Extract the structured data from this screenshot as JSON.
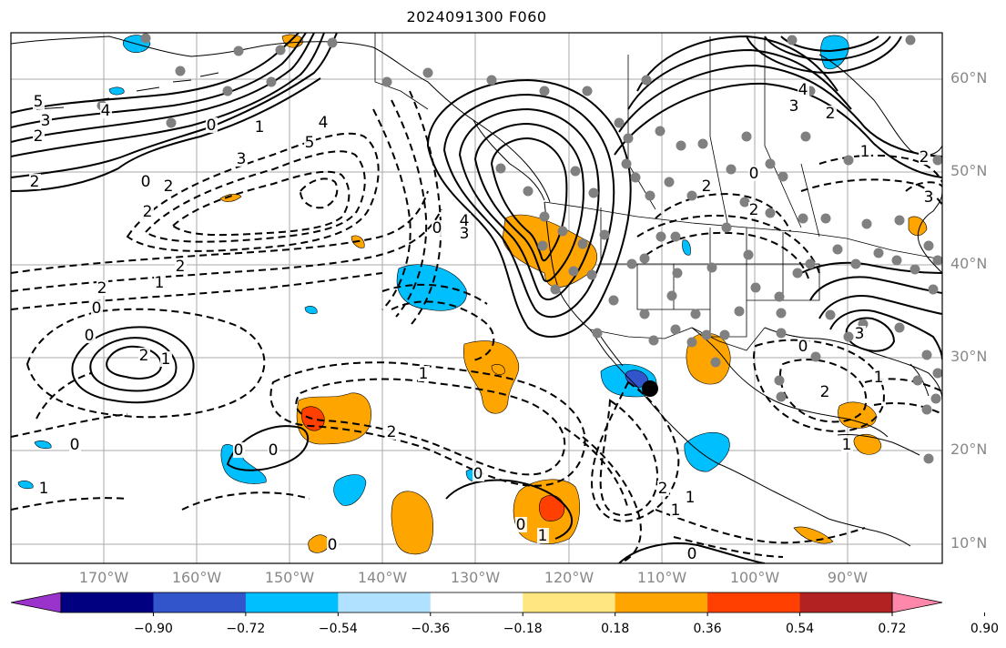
{
  "title": "2024091300 F060",
  "lat_axis": [
    "60°N",
    "50°N",
    "40°N",
    "30°N",
    "20°N",
    "10°N"
  ],
  "lon_axis": [
    "170°W",
    "160°W",
    "150°W",
    "140°W",
    "130°W",
    "120°W",
    "110°W",
    "100°W",
    "90°W"
  ],
  "colorbar": {
    "tick_labels": [
      "−0.90",
      "−0.72",
      "−0.54",
      "−0.36",
      "−0.18",
      "0.18",
      "0.36",
      "0.54",
      "0.72",
      "0.90"
    ],
    "colors": [
      "#9933cc",
      "#000080",
      "#3355cc",
      "#00bfff",
      "#b0e2ff",
      "#ffffff",
      "#ffe680",
      "#ffa500",
      "#ff4000",
      "#b22222",
      "#ff88aa"
    ]
  },
  "contour_labels": [
    {
      "id": "lbl-5-nw",
      "text": "5"
    },
    {
      "id": "lbl-4-nw",
      "text": "4"
    },
    {
      "id": "lbl-3-nw",
      "text": "3"
    },
    {
      "id": "lbl-2-nw",
      "text": "2"
    },
    {
      "id": "lbl-2-w",
      "text": "2"
    },
    {
      "id": "lbl-0-gulf",
      "text": "0"
    },
    {
      "id": "lbl-1-gulf",
      "text": "1"
    },
    {
      "id": "lbl-5-gulf",
      "text": "5"
    },
    {
      "id": "lbl-4-gulf",
      "text": "4"
    },
    {
      "id": "lbl-3-gulf",
      "text": "3"
    },
    {
      "id": "lbl-0-pac",
      "text": "0"
    },
    {
      "id": "lbl-2-pac",
      "text": "2"
    },
    {
      "id": "lbl-2-pac-b",
      "text": "2"
    },
    {
      "id": "lbl-2-mid",
      "text": "2"
    },
    {
      "id": "lbl-1-mid",
      "text": "1"
    },
    {
      "id": "lbl-2-sw",
      "text": "2"
    },
    {
      "id": "lbl-0-sw",
      "text": "0"
    },
    {
      "id": "lbl-0-low",
      "text": "0"
    },
    {
      "id": "lbl-2-low",
      "text": "2"
    },
    {
      "id": "lbl-1-low",
      "text": "1"
    },
    {
      "id": "lbl-1-tpac",
      "text": "1"
    },
    {
      "id": "lbl-2-tpac",
      "text": "2"
    },
    {
      "id": "lbl-0-tpac",
      "text": "0"
    },
    {
      "id": "lbl-0-sub",
      "text": "0"
    },
    {
      "id": "lbl-0-far",
      "text": "0"
    },
    {
      "id": "lbl-1-far",
      "text": "1"
    },
    {
      "id": "lbl-0-eq",
      "text": "0"
    },
    {
      "id": "lbl-0-eq2",
      "text": "0"
    },
    {
      "id": "lbl-1-eq",
      "text": "1"
    },
    {
      "id": "lbl-0-sea",
      "text": "0"
    },
    {
      "id": "lbl-4-west",
      "text": "4"
    },
    {
      "id": "lbl-3-west",
      "text": "3"
    },
    {
      "id": "lbl-0-west",
      "text": "0"
    },
    {
      "id": "lbl-2-rock",
      "text": "2"
    },
    {
      "id": "lbl-2-rock2",
      "text": "2"
    },
    {
      "id": "lbl-0-rock",
      "text": "0"
    },
    {
      "id": "lbl-4-hud",
      "text": "4"
    },
    {
      "id": "lbl-3-hud",
      "text": "3"
    },
    {
      "id": "lbl-2-hud",
      "text": "2"
    },
    {
      "id": "lbl-1-ne",
      "text": "1"
    },
    {
      "id": "lbl-2-ne",
      "text": "2"
    },
    {
      "id": "lbl-3-ne",
      "text": "3"
    },
    {
      "id": "lbl-1-gom",
      "text": "1"
    },
    {
      "id": "lbl-2-gom",
      "text": "2"
    },
    {
      "id": "lbl-0-gom",
      "text": "0"
    },
    {
      "id": "lbl-3-se",
      "text": "3"
    },
    {
      "id": "lbl-1-car",
      "text": "1"
    },
    {
      "id": "lbl-1-mex",
      "text": "1"
    },
    {
      "id": "lbl-2-mex",
      "text": "2"
    },
    {
      "id": "lbl-1-mex2",
      "text": "1"
    },
    {
      "id": "lbl-0-cam",
      "text": "0"
    }
  ]
}
